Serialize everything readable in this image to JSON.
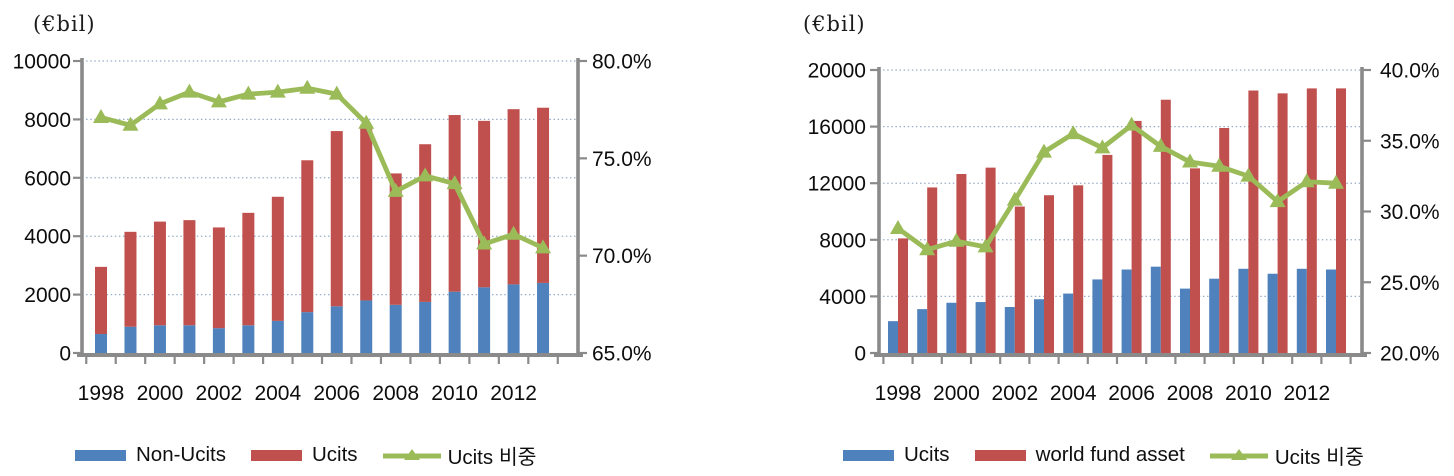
{
  "figure": {
    "background": "#ffffff",
    "axis_color": "#8a8a8a",
    "gridline_color": "#98aecb",
    "text_color": "#0d0d0d"
  },
  "chart_data": [
    {
      "type": "bar",
      "subtype": "stacked-bars-with-line",
      "unit_label": "(€bil)",
      "grid": "dotted-horizontal",
      "legend_position": "bottom",
      "years": [
        "1998",
        "1999",
        "2000",
        "2001",
        "2002",
        "2003",
        "2004",
        "2005",
        "2006",
        "2007",
        "2008",
        "2009",
        "2010",
        "2011",
        "2012",
        "2013"
      ],
      "x_tick_labels": [
        "1998",
        "2000",
        "2002",
        "2004",
        "2006",
        "2008",
        "2010",
        "2012"
      ],
      "left_axis": {
        "label": "(€bil)",
        "min": 0,
        "max": 10000,
        "step": 2000,
        "tick_labels": [
          "0",
          "2000",
          "4000",
          "6000",
          "8000",
          "10000"
        ]
      },
      "right_axis": {
        "min": 65,
        "max": 80,
        "step": 5,
        "tick_labels": [
          "65.0%",
          "70.0%",
          "75.0%",
          "80.0%"
        ]
      },
      "series": [
        {
          "name": "Non-Ucits",
          "type": "bar",
          "color": "#4f81bd",
          "values": [
            650,
            900,
            950,
            950,
            850,
            950,
            1100,
            1400,
            1600,
            1800,
            1650,
            1750,
            2100,
            2250,
            2350,
            2400
          ]
        },
        {
          "name": "Ucits",
          "type": "bar",
          "color": "#c0504d",
          "values": [
            2300,
            3250,
            3550,
            3600,
            3450,
            3850,
            4250,
            5200,
            6000,
            5900,
            4500,
            5400,
            6050,
            5700,
            6000,
            6000
          ]
        },
        {
          "name": "Ucits 비중",
          "type": "line",
          "axis": "right",
          "color": "#9bbb59",
          "marker": "triangle-up",
          "values": [
            77.1,
            76.7,
            77.8,
            78.4,
            77.9,
            78.3,
            78.4,
            78.6,
            78.3,
            76.8,
            73.3,
            74.1,
            73.7,
            70.6,
            71.1,
            70.4
          ]
        }
      ]
    },
    {
      "type": "bar",
      "subtype": "grouped-bars-with-line",
      "unit_label": "(€bil)",
      "grid": "dotted-horizontal",
      "legend_position": "bottom",
      "years": [
        "1998",
        "1999",
        "2000",
        "2001",
        "2002",
        "2003",
        "2004",
        "2005",
        "2006",
        "2007",
        "2008",
        "2009",
        "2010",
        "2011",
        "2012",
        "2013"
      ],
      "x_tick_labels": [
        "1998",
        "2000",
        "2002",
        "2004",
        "2006",
        "2008",
        "2010",
        "2012"
      ],
      "left_axis": {
        "label": "(€bil)",
        "min": 0,
        "max": 20000,
        "step": 4000,
        "tick_labels": [
          "0",
          "4000",
          "8000",
          "12000",
          "16000",
          "20000"
        ]
      },
      "right_axis": {
        "min": 20,
        "max": 40,
        "step": 5,
        "tick_labels": [
          "20.0%",
          "25.0%",
          "30.0%",
          "35.0%",
          "40.0%"
        ]
      },
      "series": [
        {
          "name": "Ucits",
          "type": "bar",
          "color": "#4f81bd",
          "values": [
            2250,
            3100,
            3550,
            3600,
            3250,
            3800,
            4200,
            5200,
            5900,
            6100,
            4550,
            5250,
            5950,
            5600,
            5950,
            5900
          ]
        },
        {
          "name": "world fund asset",
          "type": "bar",
          "color": "#c0504d",
          "values": [
            8100,
            11700,
            12650,
            13100,
            10350,
            11150,
            11850,
            14000,
            16400,
            17900,
            13050,
            15900,
            18550,
            18350,
            18700,
            18700
          ]
        },
        {
          "name": "Ucits 비중",
          "type": "line",
          "axis": "right",
          "color": "#9bbb59",
          "marker": "triangle-up",
          "values": [
            28.8,
            27.3,
            27.9,
            27.5,
            30.8,
            34.2,
            35.5,
            34.5,
            36.1,
            34.6,
            33.5,
            33.2,
            32.5,
            30.7,
            32.1,
            32.0
          ]
        }
      ]
    }
  ]
}
